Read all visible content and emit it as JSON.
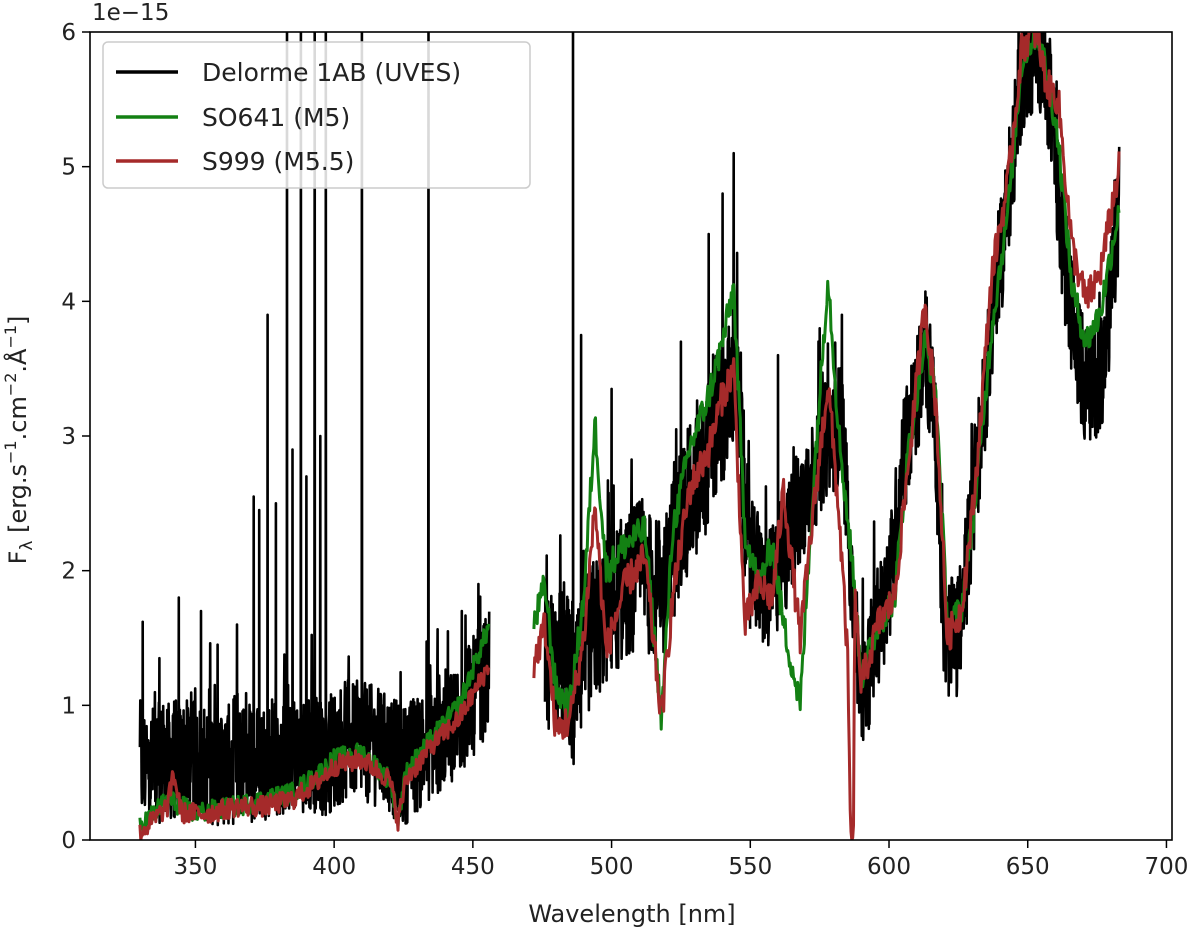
{
  "chart_data": {
    "type": "line",
    "xlabel": "Wavelength [nm]",
    "ylabel_parts": {
      "f": "F",
      "lambda": "λ",
      "open": " [erg.s",
      "exp1": "−1",
      "mid1": ".cm",
      "exp2": "−2",
      "mid2": ".Å",
      "exp3": "−1",
      "close": "]"
    },
    "y_offset_label": "1e−15",
    "xlim": [
      312,
      702
    ],
    "ylim": [
      0,
      6
    ],
    "xticks": [
      350,
      400,
      450,
      500,
      550,
      600,
      650,
      700
    ],
    "yticks": [
      0,
      1,
      2,
      3,
      4,
      5,
      6
    ],
    "grid": false,
    "legend_position": "top-left",
    "series": [
      {
        "name": "Delorme 1AB (UVES)",
        "color": "#000000",
        "segments": [
          {
            "x_range": [
              330,
              456
            ],
            "baseline": [
              [
                330,
                0.55
              ],
              [
                345,
                0.6
              ],
              [
                360,
                0.55
              ],
              [
                375,
                0.6
              ],
              [
                385,
                0.65
              ],
              [
                395,
                0.6
              ],
              [
                405,
                0.75
              ],
              [
                415,
                0.7
              ],
              [
                425,
                0.55
              ],
              [
                435,
                0.75
              ],
              [
                445,
                0.9
              ],
              [
                456,
                1.25
              ]
            ],
            "noise": 0.45,
            "spikes": [
              [
                331,
                1.62
              ],
              [
                337,
                1.35
              ],
              [
                344,
                1.8
              ],
              [
                352,
                1.7
              ],
              [
                358,
                1.45
              ],
              [
                365,
                1.6
              ],
              [
                371,
                2.55
              ],
              [
                373,
                2.45
              ],
              [
                376,
                3.9
              ],
              [
                379,
                2.5
              ],
              [
                383,
                6.0
              ],
              [
                385,
                2.9
              ],
              [
                388,
                6.0
              ],
              [
                390,
                2.7
              ],
              [
                393,
                6.0
              ],
              [
                395,
                3.0
              ],
              [
                397,
                6.0
              ],
              [
                410,
                6.0
              ],
              [
                434,
                6.0
              ],
              [
                441,
                1.55
              ],
              [
                446,
                1.7
              ],
              [
                452,
                1.9
              ]
            ]
          },
          {
            "x_range": [
              476,
              550
            ],
            "baseline": [
              [
                476,
                1.35
              ],
              [
                484,
                1.3
              ],
              [
                486,
                1.0
              ],
              [
                492,
                1.5
              ],
              [
                500,
                1.75
              ],
              [
                510,
                2.0
              ],
              [
                518,
                1.8
              ],
              [
                525,
                2.4
              ],
              [
                532,
                2.7
              ],
              [
                540,
                3.2
              ],
              [
                545,
                3.5
              ],
              [
                548,
                2.4
              ],
              [
                550,
                2.1
              ]
            ],
            "noise": 0.55,
            "spikes": [
              [
                486.1,
                6.0
              ],
              [
                489,
                3.75
              ],
              [
                500,
                3.35
              ],
              [
                525,
                3.7
              ],
              [
                535,
                4.5
              ],
              [
                540,
                4.8
              ],
              [
                544,
                5.1
              ]
            ]
          },
          {
            "x_range": [
              550,
              683
            ],
            "baseline": [
              [
                550,
                2.1
              ],
              [
                556,
                1.8
              ],
              [
                562,
                2.1
              ],
              [
                570,
                2.6
              ],
              [
                578,
                3.0
              ],
              [
                583,
                3.1
              ],
              [
                587,
                1.8
              ],
              [
                590,
                1.0
              ],
              [
                595,
                1.5
              ],
              [
                600,
                1.9
              ],
              [
                605,
                2.8
              ],
              [
                612,
                3.5
              ],
              [
                616,
                3.4
              ],
              [
                620,
                1.5
              ],
              [
                625,
                1.5
              ],
              [
                630,
                2.4
              ],
              [
                636,
                3.6
              ],
              [
                642,
                4.6
              ],
              [
                648,
                5.7
              ],
              [
                654,
                5.9
              ],
              [
                658,
                5.5
              ],
              [
                662,
                4.5
              ],
              [
                668,
                3.6
              ],
              [
                672,
                3.3
              ],
              [
                678,
                3.6
              ],
              [
                683,
                4.7
              ]
            ],
            "noise": 0.45,
            "spikes": [
              [
                560,
                3.6
              ],
              [
                575,
                3.8
              ],
              [
                583,
                3.9
              ],
              [
                650,
                6.0
              ],
              [
                655,
                6.0
              ]
            ]
          }
        ]
      },
      {
        "name": "SO641 (M5)",
        "color": "#138013",
        "segments": [
          {
            "x_range": [
              330,
              456
            ],
            "baseline": [
              [
                330,
                0.1
              ],
              [
                335,
                0.2
              ],
              [
                340,
                0.3
              ],
              [
                350,
                0.2
              ],
              [
                365,
                0.25
              ],
              [
                375,
                0.3
              ],
              [
                385,
                0.35
              ],
              [
                395,
                0.5
              ],
              [
                400,
                0.6
              ],
              [
                410,
                0.65
              ],
              [
                420,
                0.45
              ],
              [
                423,
                0.15
              ],
              [
                426,
                0.5
              ],
              [
                435,
                0.75
              ],
              [
                445,
                1.0
              ],
              [
                456,
                1.6
              ]
            ],
            "noise": 0.12
          },
          {
            "x_range": [
              472,
              683
            ],
            "baseline": [
              [
                472,
                1.6
              ],
              [
                476,
                1.9
              ],
              [
                480,
                1.1
              ],
              [
                485,
                1.0
              ],
              [
                490,
                1.8
              ],
              [
                494,
                3.1
              ],
              [
                498,
                2.0
              ],
              [
                505,
                2.2
              ],
              [
                512,
                2.3
              ],
              [
                518,
                0.9
              ],
              [
                522,
                2.3
              ],
              [
                528,
                2.9
              ],
              [
                535,
                3.3
              ],
              [
                540,
                3.7
              ],
              [
                544,
                4.1
              ],
              [
                548,
                2.3
              ],
              [
                553,
                1.9
              ],
              [
                558,
                2.2
              ],
              [
                562,
                1.6
              ],
              [
                568,
                1.0
              ],
              [
                572,
                2.4
              ],
              [
                578,
                4.2
              ],
              [
                582,
                3.0
              ],
              [
                587,
                2.0
              ],
              [
                590,
                1.2
              ],
              [
                596,
                1.6
              ],
              [
                602,
                1.8
              ],
              [
                607,
                2.9
              ],
              [
                613,
                3.7
              ],
              [
                617,
                3.3
              ],
              [
                621,
                1.6
              ],
              [
                626,
                1.7
              ],
              [
                631,
                2.5
              ],
              [
                637,
                3.8
              ],
              [
                643,
                4.7
              ],
              [
                648,
                5.8
              ],
              [
                653,
                6.0
              ],
              [
                657,
                5.7
              ],
              [
                661,
                5.2
              ],
              [
                666,
                4.1
              ],
              [
                671,
                3.7
              ],
              [
                676,
                3.9
              ],
              [
                683,
                4.7
              ]
            ],
            "noise": 0.18
          }
        ]
      },
      {
        "name": "S999 (M5.5)",
        "color": "#a52a2a",
        "segments": [
          {
            "x_range": [
              330,
              456
            ],
            "baseline": [
              [
                330,
                0.05
              ],
              [
                335,
                0.15
              ],
              [
                340,
                0.25
              ],
              [
                342,
                0.5
              ],
              [
                345,
                0.2
              ],
              [
                355,
                0.2
              ],
              [
                365,
                0.25
              ],
              [
                375,
                0.25
              ],
              [
                385,
                0.3
              ],
              [
                395,
                0.45
              ],
              [
                400,
                0.55
              ],
              [
                410,
                0.6
              ],
              [
                420,
                0.45
              ],
              [
                423,
                0.15
              ],
              [
                426,
                0.45
              ],
              [
                435,
                0.7
              ],
              [
                445,
                0.9
              ],
              [
                456,
                1.3
              ]
            ],
            "noise": 0.12
          },
          {
            "x_range": [
              472,
              683
            ],
            "baseline": [
              [
                472,
                1.3
              ],
              [
                476,
                1.6
              ],
              [
                480,
                0.8
              ],
              [
                485,
                0.9
              ],
              [
                490,
                1.5
              ],
              [
                494,
                2.5
              ],
              [
                498,
                1.4
              ],
              [
                505,
                1.9
              ],
              [
                512,
                2.1
              ],
              [
                518,
                0.9
              ],
              [
                522,
                1.8
              ],
              [
                528,
                2.6
              ],
              [
                535,
                2.9
              ],
              [
                540,
                3.3
              ],
              [
                544,
                3.5
              ],
              [
                548,
                1.6
              ],
              [
                553,
                1.9
              ],
              [
                558,
                1.8
              ],
              [
                562,
                2.6
              ],
              [
                568,
                1.5
              ],
              [
                572,
                2.3
              ],
              [
                578,
                3.4
              ],
              [
                582,
                2.4
              ],
              [
                585,
                1.4
              ],
              [
                586.2,
                0.0
              ],
              [
                587.3,
                0.0
              ],
              [
                587.6,
                1.8
              ],
              [
                590,
                1.15
              ],
              [
                596,
                1.6
              ],
              [
                602,
                1.8
              ],
              [
                607,
                2.8
              ],
              [
                613,
                4.0
              ],
              [
                617,
                3.2
              ],
              [
                621,
                1.5
              ],
              [
                626,
                1.7
              ],
              [
                631,
                2.6
              ],
              [
                637,
                4.2
              ],
              [
                643,
                4.9
              ],
              [
                648,
                5.9
              ],
              [
                653,
                6.0
              ],
              [
                657,
                5.6
              ],
              [
                661,
                5.5
              ],
              [
                666,
                4.4
              ],
              [
                671,
                4.0
              ],
              [
                676,
                4.2
              ],
              [
                683,
                5.0
              ]
            ],
            "noise": 0.2
          }
        ]
      }
    ]
  }
}
